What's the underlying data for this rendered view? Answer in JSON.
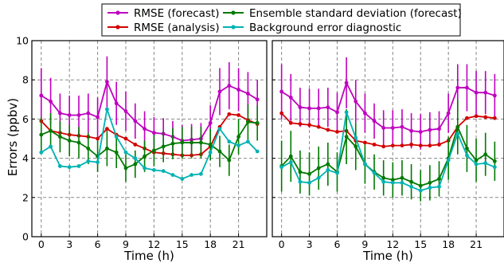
{
  "ylabel": "Errors (ppbv)",
  "legend": [
    {
      "label": "RMSE (forecast)",
      "color": "#bf00bf"
    },
    {
      "label": "RMSE (analysis)",
      "color": "#d40000"
    },
    {
      "label": "Ensemble standard deviation (forecast)",
      "color": "#007a00"
    },
    {
      "label": "Background error diagnostic",
      "color": "#00b2b2"
    }
  ],
  "chart_data": [
    {
      "type": "line",
      "xlabel": "Time (h)",
      "ylabel": "Errors (ppbv)",
      "xlim": [
        -1,
        24
      ],
      "ylim": [
        0,
        10
      ],
      "xticks": [
        0,
        3,
        6,
        9,
        12,
        15,
        18,
        21
      ],
      "yticks": [
        0,
        2,
        4,
        6,
        8,
        10
      ],
      "grid": true,
      "x": [
        0,
        1,
        2,
        3,
        4,
        5,
        6,
        7,
        8,
        9,
        10,
        11,
        12,
        13,
        14,
        15,
        16,
        17,
        18,
        19,
        20,
        21,
        22,
        23
      ],
      "series": [
        {
          "name": "RMSE (forecast)",
          "color": "#bf00bf",
          "values": [
            7.2,
            6.9,
            6.3,
            6.2,
            6.2,
            6.3,
            6.1,
            7.9,
            6.8,
            6.4,
            5.9,
            5.5,
            5.3,
            5.25,
            5.1,
            4.9,
            4.95,
            5.0,
            5.8,
            7.4,
            7.7,
            7.5,
            7.3,
            7.0
          ],
          "error": [
            1.4,
            1.2,
            1.0,
            1.0,
            1.0,
            1.0,
            1.0,
            1.3,
            1.1,
            1.0,
            0.9,
            0.9,
            0.8,
            0.8,
            0.8,
            0.8,
            0.8,
            0.8,
            0.9,
            1.2,
            1.2,
            1.1,
            1.1,
            1.0
          ]
        },
        {
          "name": "RMSE (analysis)",
          "color": "#d40000",
          "values": [
            5.9,
            5.4,
            5.3,
            5.2,
            5.15,
            5.1,
            5.0,
            5.5,
            5.2,
            5.0,
            4.7,
            4.5,
            4.3,
            4.25,
            4.2,
            4.15,
            4.15,
            4.2,
            4.6,
            5.6,
            6.25,
            6.2,
            5.95,
            5.75
          ]
        },
        {
          "name": "Ensemble standard deviation (forecast)",
          "color": "#007a00",
          "values": [
            5.2,
            5.4,
            5.1,
            4.9,
            4.8,
            4.5,
            4.1,
            4.5,
            4.3,
            3.5,
            3.7,
            4.1,
            4.4,
            4.6,
            4.75,
            4.8,
            4.8,
            4.8,
            4.7,
            4.35,
            3.9,
            5.1,
            5.85,
            5.8
          ],
          "error": [
            0.9,
            0.9,
            0.8,
            0.8,
            0.8,
            0.8,
            0.8,
            0.9,
            0.8,
            0.7,
            0.7,
            0.8,
            0.8,
            0.8,
            0.8,
            0.8,
            0.8,
            0.8,
            0.8,
            0.8,
            0.8,
            0.9,
            0.9,
            0.9
          ]
        },
        {
          "name": "Background error diagnostic",
          "color": "#00b2b2",
          "values": [
            4.3,
            4.6,
            3.6,
            3.55,
            3.6,
            3.85,
            3.8,
            6.5,
            5.1,
            4.3,
            4.0,
            3.5,
            3.4,
            3.35,
            3.15,
            2.95,
            3.15,
            3.2,
            4.3,
            5.5,
            4.85,
            4.65,
            4.85,
            4.35
          ]
        }
      ]
    },
    {
      "type": "line",
      "xlabel": "Time (h)",
      "xlim": [
        -1,
        24
      ],
      "ylim": [
        0,
        10
      ],
      "xticks": [
        0,
        3,
        6,
        9,
        12,
        15,
        18,
        21
      ],
      "yticks": [
        0,
        2,
        4,
        6,
        8,
        10
      ],
      "grid": true,
      "x": [
        0,
        1,
        2,
        3,
        4,
        5,
        6,
        7,
        8,
        9,
        10,
        11,
        12,
        13,
        14,
        15,
        16,
        17,
        18,
        19,
        20,
        21,
        22,
        23
      ],
      "series": [
        {
          "name": "RMSE (forecast)",
          "color": "#bf00bf",
          "values": [
            7.4,
            7.1,
            6.6,
            6.55,
            6.55,
            6.6,
            6.35,
            7.85,
            6.9,
            6.3,
            5.9,
            5.55,
            5.55,
            5.6,
            5.4,
            5.35,
            5.45,
            5.5,
            6.3,
            7.6,
            7.6,
            7.35,
            7.35,
            7.2
          ],
          "error": [
            1.4,
            1.2,
            1.0,
            1.0,
            1.0,
            1.0,
            1.0,
            1.3,
            1.1,
            1.0,
            0.9,
            0.9,
            0.9,
            0.9,
            0.9,
            0.9,
            0.9,
            0.9,
            1.0,
            1.2,
            1.2,
            1.1,
            1.1,
            1.1
          ]
        },
        {
          "name": "RMSE (analysis)",
          "color": "#d40000",
          "values": [
            6.3,
            5.8,
            5.75,
            5.7,
            5.6,
            5.45,
            5.35,
            5.4,
            4.9,
            4.8,
            4.7,
            4.6,
            4.65,
            4.65,
            4.7,
            4.65,
            4.65,
            4.7,
            4.9,
            5.6,
            6.05,
            6.15,
            6.1,
            6.05
          ]
        },
        {
          "name": "Ensemble standard deviation (forecast)",
          "color": "#007a00",
          "values": [
            3.6,
            4.1,
            3.3,
            3.2,
            3.5,
            3.7,
            3.3,
            5.1,
            4.6,
            3.7,
            3.3,
            3.0,
            2.9,
            3.0,
            2.8,
            2.6,
            2.75,
            2.95,
            4.0,
            5.6,
            4.5,
            3.9,
            4.2,
            3.85
          ],
          "error": [
            1.3,
            1.3,
            1.1,
            1.1,
            1.1,
            1.1,
            1.0,
            1.4,
            1.2,
            1.0,
            0.9,
            0.9,
            0.9,
            0.9,
            0.9,
            0.8,
            0.9,
            0.9,
            1.1,
            1.4,
            1.2,
            1.1,
            1.1,
            1.0
          ]
        },
        {
          "name": "Background error diagnostic",
          "color": "#00b2b2",
          "values": [
            3.55,
            3.8,
            2.8,
            2.75,
            3.0,
            3.4,
            3.25,
            6.35,
            5.05,
            3.7,
            3.25,
            2.8,
            2.75,
            2.75,
            2.55,
            2.35,
            2.5,
            2.55,
            3.9,
            5.25,
            4.15,
            3.7,
            3.75,
            3.55
          ]
        }
      ]
    }
  ]
}
